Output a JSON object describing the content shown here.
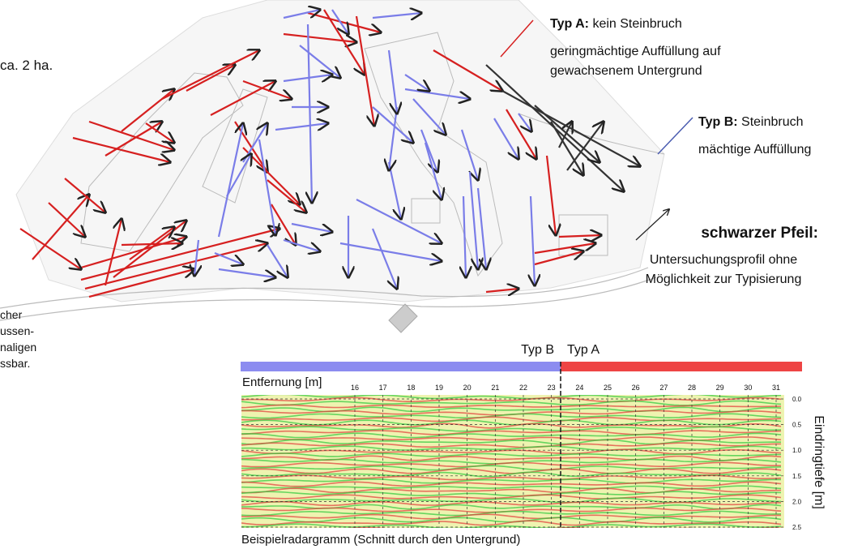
{
  "map": {
    "area_note": "ca. 2 ha.",
    "side_note": [
      "cher",
      "ussen-",
      "naligen",
      "ssbar."
    ]
  },
  "legend": {
    "type_a": {
      "label": "Typ A:",
      "text": "kein Steinbruch",
      "description": [
        "geringmächtige Auffüllung auf",
        "gewachsenem Untergrund"
      ]
    },
    "type_b": {
      "label": "Typ B:",
      "text": "Steinbruch",
      "description": [
        "mächtige Auffüllung"
      ]
    },
    "black_arrow": {
      "label": "schwarzer Pfeil:",
      "description": [
        "Untersuchungsprofil ohne",
        "Möglichkeit zur Typisierung"
      ]
    }
  },
  "radargram": {
    "segment_labels": [
      "Typ B",
      "Typ A"
    ],
    "x_axis_label": "Entfernung [m]",
    "x_ticks": [
      16,
      17,
      18,
      19,
      20,
      21,
      22,
      23,
      24,
      25,
      26,
      27,
      28,
      29,
      30,
      31
    ],
    "y_axis_label": "Eindringtiefe [m]",
    "y_ticks": [
      "0.0",
      "0.5",
      "1.0",
      "1.5",
      "2.0",
      "2.5"
    ],
    "caption": "Beispielradargramm (Schnitt durch den Untergrund)"
  }
}
